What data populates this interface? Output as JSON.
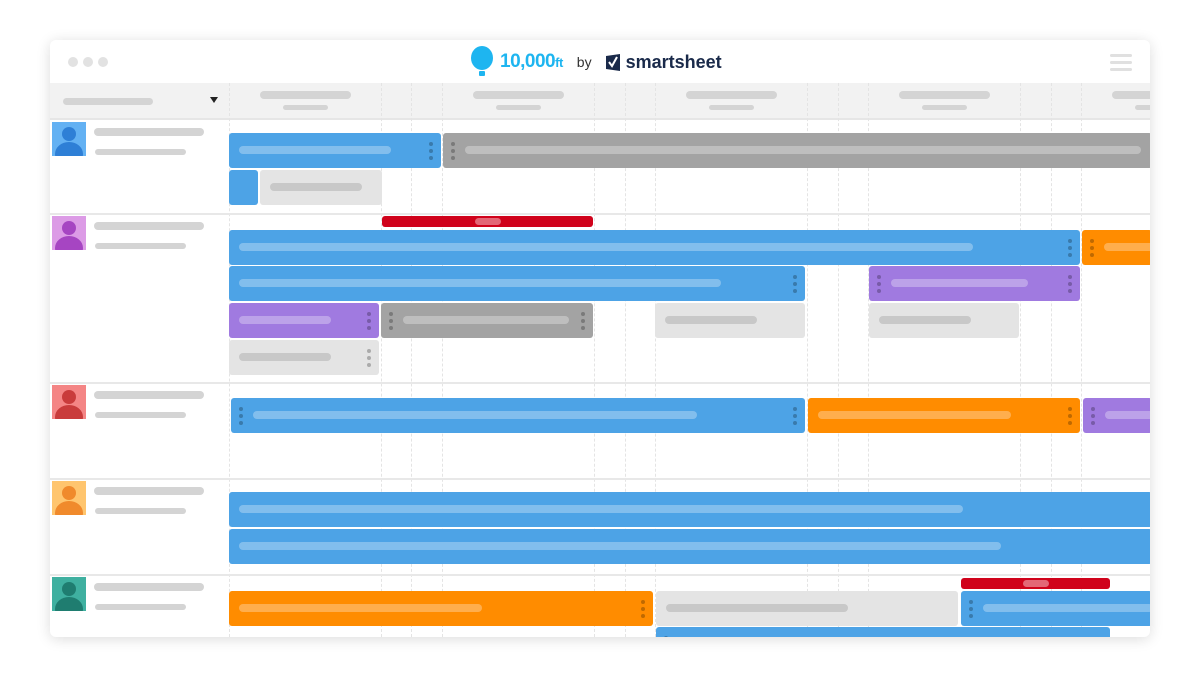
{
  "brand": {
    "name": "10,000",
    "unit": "ft",
    "by": "by",
    "partner": "smartsheet",
    "color": "#1eb5f0",
    "partner_color": "#1a2a4a"
  },
  "colors": {
    "blue": "#4da3e6",
    "gray": "#a3a3a3",
    "light": "#e4e4e4",
    "purple": "#a07ae0",
    "orange": "#ff8c00",
    "red": "#d0021b"
  },
  "people": [
    {
      "avatar_bg": "#63b1f3",
      "avatar_fg": "#2e7fd6"
    },
    {
      "avatar_bg": "#dc9be6",
      "avatar_fg": "#a645c2"
    },
    {
      "avatar_bg": "#f48585",
      "avatar_fg": "#c93b3b"
    },
    {
      "avatar_bg": "#ffc56e",
      "avatar_fg": "#f08a2c"
    },
    {
      "avatar_bg": "#3fb0a0",
      "avatar_fg": "#1f7d70"
    }
  ]
}
